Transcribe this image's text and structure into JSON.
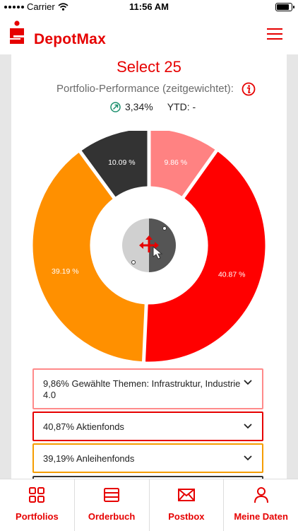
{
  "status_bar": {
    "carrier": "Carrier",
    "time": "11:56 AM"
  },
  "header": {
    "brand": "DepotMax",
    "logo_icon": "sparkasse-logo-icon",
    "menu_icon": "hamburger-menu-icon"
  },
  "portfolio": {
    "title": "Select 25",
    "performance_label": "Portfolio-Performance (zeitgewichtet):",
    "performance_value": "3,34%",
    "ytd": "YTD: -"
  },
  "chart_data": {
    "type": "pie",
    "center_icon": "drag-rotate-hand-icon",
    "slices": [
      {
        "label": "9.86 %",
        "value": 9.86,
        "color": "#ff8282"
      },
      {
        "label": "40.87 %",
        "value": 40.87,
        "color": "#ff0000"
      },
      {
        "label": "39.19 %",
        "value": 39.19,
        "color": "#ff9000"
      },
      {
        "label": "10.09 %",
        "value": 10.09,
        "color": "#333333"
      }
    ]
  },
  "accordion": [
    {
      "text": "9,86% Gewählte Themen: Infrastruktur, Industrie 4.0",
      "color": "#ff8a8a"
    },
    {
      "text": "40,87% Aktienfonds",
      "color": "#e60000"
    },
    {
      "text": "39,19% Anleihenfonds",
      "color": "#f59d00"
    }
  ],
  "bottom_nav": [
    {
      "label": "Portfolios",
      "icon": "grid-icon"
    },
    {
      "label": "Orderbuch",
      "icon": "book-icon"
    },
    {
      "label": "Postbox",
      "icon": "envelope-icon"
    },
    {
      "label": "Meine Daten",
      "icon": "person-icon"
    }
  ],
  "colors": {
    "accent": "#e60000"
  }
}
